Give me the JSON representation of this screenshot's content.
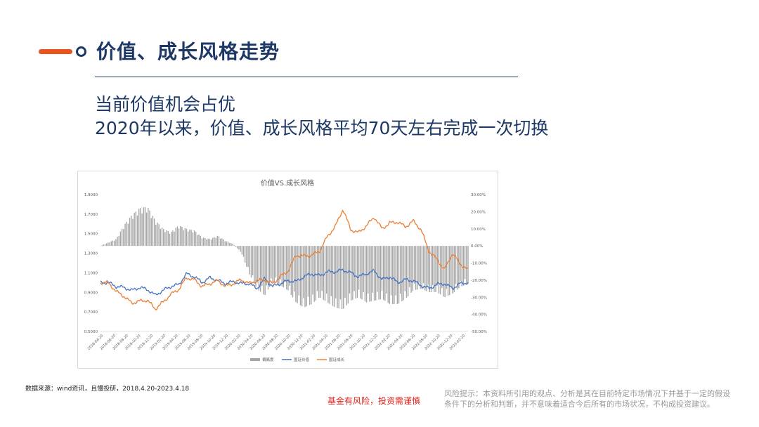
{
  "header": {
    "title": "价值、成长风格走势"
  },
  "subtitle": {
    "line1": "当前价值机会占优",
    "line2": "2020年以来，价值、成长风格平均70天左右完成一次切换"
  },
  "colors": {
    "accent": "#e8531e",
    "navy": "#1d3864",
    "value_line": "#4472c4",
    "growth_line": "#ed7d31",
    "bar": "#a6a6a6",
    "risk": "#e0211b"
  },
  "chart_data": {
    "type": "line",
    "title": "价值VS.成长风格",
    "x_ticks": [
      "2018-04-20",
      "2018-06-20",
      "2018-08-20",
      "2018-10-20",
      "2018-12-20",
      "2019-02-20",
      "2019-04-20",
      "2019-06-20",
      "2019-08-20",
      "2019-10-20",
      "2019-12-20",
      "2020-02-20",
      "2020-04-20",
      "2020-06-20",
      "2020-08-20",
      "2020-10-20",
      "2020-12-20",
      "2021-02-20",
      "2021-04-20",
      "2021-06-20",
      "2021-08-20",
      "2021-10-20",
      "2021-12-20",
      "2022-02-20",
      "2022-04-20",
      "2022-06-20",
      "2022-08-20",
      "2022-10-20",
      "2022-12-20",
      "2023-02-20"
    ],
    "y_left_ticks": [
      "1.9000",
      "1.7000",
      "1.5000",
      "1.3000",
      "1.1000",
      "0.9000",
      "0.7000",
      "0.5000"
    ],
    "y_left_range": [
      0.5,
      1.9
    ],
    "y_right_ticks": [
      "30.00%",
      "20.00%",
      "10.00%",
      "0.00%",
      "-10.00%",
      "-20.00%",
      "-30.00%",
      "-40.00%",
      "-50.00%"
    ],
    "y_right_range": [
      -50,
      30
    ],
    "legend": [
      "偏离度",
      "国证价值",
      "国证成长"
    ],
    "legend_position": "bottom",
    "series": [
      {
        "name": "偏离度",
        "type": "bar",
        "axis": "right",
        "values": [
          0,
          2,
          4,
          12,
          18,
          22,
          23,
          15,
          10,
          8,
          12,
          10,
          9,
          5,
          4,
          6,
          3,
          1,
          -4,
          -16,
          -25,
          -29,
          -21,
          -23,
          -26,
          -33,
          -36,
          -34,
          -30,
          -33,
          -36,
          -37,
          -32,
          -30,
          -33,
          -32,
          -31,
          -34,
          -34,
          -31,
          -26,
          -25,
          -27,
          -27,
          -30,
          -28,
          -24,
          -22
        ]
      },
      {
        "name": "国证价值",
        "type": "line",
        "axis": "left",
        "values": [
          1.0,
          1.0,
          0.96,
          0.95,
          0.92,
          0.95,
          0.93,
          0.87,
          0.92,
          0.96,
          0.98,
          1.09,
          1.06,
          1.0,
          1.05,
          1.02,
          0.99,
          1.01,
          0.99,
          0.99,
          0.94,
          1.04,
          0.96,
          0.99,
          1.02,
          1.01,
          1.06,
          1.09,
          1.07,
          1.11,
          1.11,
          1.13,
          1.1,
          1.06,
          1.09,
          1.12,
          1.03,
          1.06,
          1.0,
          1.03,
          1.02,
          0.97,
          0.94,
          0.98,
          0.99,
          0.94,
          0.99,
          1.0
        ]
      },
      {
        "name": "国证成长",
        "type": "line",
        "axis": "left",
        "values": [
          1.0,
          1.0,
          0.91,
          0.86,
          0.79,
          0.81,
          0.82,
          0.73,
          0.8,
          0.88,
          0.93,
          1.05,
          1.03,
          0.96,
          0.99,
          1.02,
          0.96,
          0.99,
          1.03,
          0.99,
          1.02,
          1.03,
          0.99,
          1.06,
          1.12,
          1.28,
          1.27,
          1.28,
          1.32,
          1.47,
          1.57,
          1.75,
          1.54,
          1.51,
          1.58,
          1.67,
          1.55,
          1.61,
          1.62,
          1.57,
          1.63,
          1.54,
          1.32,
          1.24,
          1.13,
          1.3,
          1.19,
          1.13
        ]
      }
    ]
  },
  "footer": {
    "source": "数据来源：wind资讯，且慢投研，2018.4.20-2023.4.18",
    "risk": "基金有风险，投资需谨慎",
    "disclaimer_line1": "风险提示：本资料所引用的观点、分析是其在目前特定市场情况下并基于一定的假设",
    "disclaimer_line2": "条件下的分析和判断，并不意味着适合今后所有的市场状况，不构成投资建议。"
  }
}
